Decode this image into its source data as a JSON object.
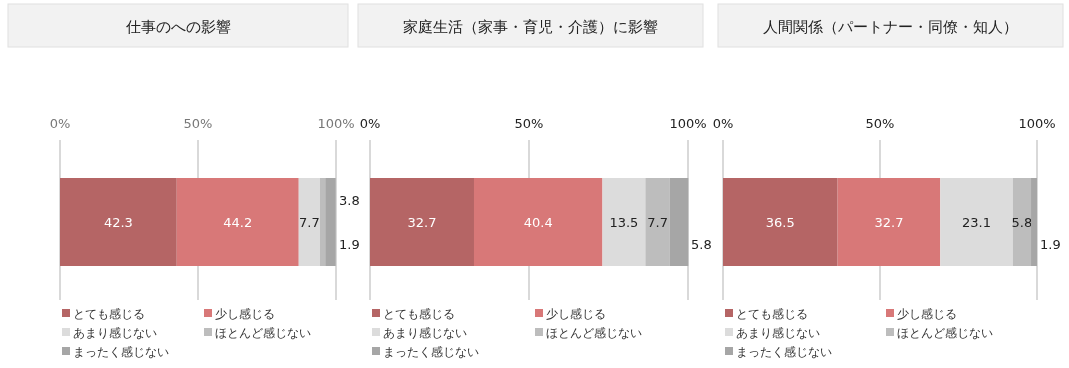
{
  "chart_data": [
    {
      "type": "bar",
      "orientation": "horizontal",
      "stacked": true,
      "title": "仕事のへの影響",
      "categories": [
        null
      ],
      "xlim": [
        0,
        100
      ],
      "xticks": [
        {
          "value": 0,
          "label": "0%"
        },
        {
          "value": 50,
          "label": "50%"
        },
        {
          "value": 100,
          "label": "100%"
        }
      ],
      "grid": "x",
      "tick_labels": "x",
      "legend": "bottom",
      "data_labels": true,
      "series": [
        {
          "name": "とても感じる",
          "color": "#b56565",
          "values": [
            42.3
          ]
        },
        {
          "name": "少し感じる",
          "color": "#d87878",
          "values": [
            44.2
          ]
        },
        {
          "name": "あまり感じない",
          "color": "#dcdcdc",
          "values": [
            7.7
          ]
        },
        {
          "name": "ほとんど感じない",
          "color": "#bdbdbd",
          "values": [
            1.9
          ]
        },
        {
          "name": "まったく感じない",
          "color": "#a6a6a6",
          "values": [
            3.8
          ]
        }
      ]
    },
    {
      "type": "bar",
      "orientation": "horizontal",
      "stacked": true,
      "title": "家庭生活（家事・育児・介護）に影響",
      "categories": [
        null
      ],
      "xlim": [
        0,
        100
      ],
      "xticks": [
        {
          "value": 0,
          "label": "0%"
        },
        {
          "value": 50,
          "label": "50%"
        },
        {
          "value": 100,
          "label": "100%"
        }
      ],
      "grid": "x",
      "tick_labels": "x",
      "legend": "bottom",
      "data_labels": true,
      "series": [
        {
          "name": "とても感じる",
          "color": "#b56565",
          "values": [
            32.7
          ]
        },
        {
          "name": "少し感じる",
          "color": "#d87878",
          "values": [
            40.4
          ]
        },
        {
          "name": "あまり感じない",
          "color": "#dcdcdc",
          "values": [
            13.5
          ]
        },
        {
          "name": "ほとんど感じない",
          "color": "#bdbdbd",
          "values": [
            7.7
          ]
        },
        {
          "name": "まったく感じない",
          "color": "#a6a6a6",
          "values": [
            5.8
          ]
        }
      ]
    },
    {
      "type": "bar",
      "orientation": "horizontal",
      "stacked": true,
      "title": "人間関係（パートナー・同僚・知人）",
      "categories": [
        null
      ],
      "xlim": [
        0,
        100
      ],
      "xticks": [
        {
          "value": 0,
          "label": "0%"
        },
        {
          "value": 50,
          "label": "50%"
        },
        {
          "value": 100,
          "label": "100%"
        }
      ],
      "grid": "x",
      "tick_labels": "x",
      "legend": "bottom",
      "data_labels": true,
      "series": [
        {
          "name": "とても感じる",
          "color": "#b56565",
          "values": [
            36.5
          ]
        },
        {
          "name": "少し感じる",
          "color": "#d87878",
          "values": [
            32.7
          ]
        },
        {
          "name": "あまり感じない",
          "color": "#dcdcdc",
          "values": [
            23.1
          ]
        },
        {
          "name": "ほとんど感じない",
          "color": "#bdbdbd",
          "values": [
            5.8
          ]
        },
        {
          "name": "まったく感じない",
          "color": "#a6a6a6",
          "values": [
            1.9
          ]
        }
      ]
    }
  ]
}
